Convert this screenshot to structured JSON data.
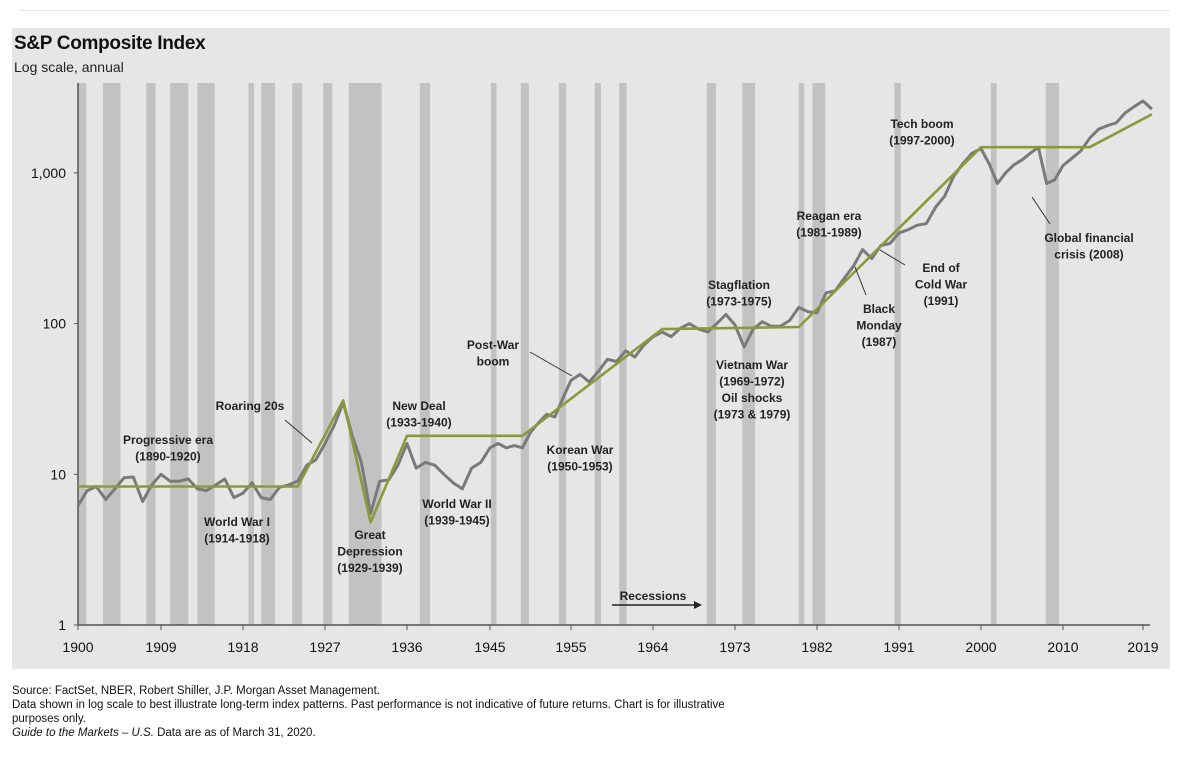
{
  "chart_data": {
    "type": "line",
    "title": "S&P Composite Index",
    "subtitle": "Log scale, annual",
    "xlabel": "",
    "ylabel": "",
    "yscale": "log",
    "ylim": [
      1,
      4000
    ],
    "xlim": [
      1900,
      2020
    ],
    "y_ticks": [
      {
        "value": 1,
        "label": "1"
      },
      {
        "value": 10,
        "label": "10"
      },
      {
        "value": 100,
        "label": "100"
      },
      {
        "value": 1000,
        "label": "1,000"
      }
    ],
    "x_ticks": [
      "1900",
      "1909",
      "1918",
      "1927",
      "1936",
      "1945",
      "1955",
      "1964",
      "1973",
      "1982",
      "1991",
      "2000",
      "2010",
      "2019"
    ],
    "series": [
      {
        "name": "S&P Composite Index",
        "color": "#7a7a7a",
        "x": [
          1900,
          1901,
          1902,
          1903,
          1904,
          1905,
          1906,
          1907,
          1908,
          1909,
          1910,
          1911,
          1912,
          1913,
          1914,
          1915,
          1916,
          1917,
          1918,
          1919,
          1920,
          1921,
          1922,
          1923,
          1924,
          1925,
          1926,
          1927,
          1928,
          1929,
          1930,
          1931,
          1932,
          1933,
          1934,
          1935,
          1936,
          1937,
          1938,
          1939,
          1940,
          1941,
          1942,
          1943,
          1944,
          1945,
          1946,
          1947,
          1948,
          1949,
          1950,
          1951,
          1952,
          1953,
          1954,
          1955,
          1956,
          1957,
          1958,
          1959,
          1960,
          1961,
          1962,
          1963,
          1964,
          1965,
          1966,
          1967,
          1968,
          1969,
          1970,
          1971,
          1972,
          1973,
          1974,
          1975,
          1976,
          1977,
          1978,
          1979,
          1980,
          1981,
          1982,
          1983,
          1984,
          1985,
          1986,
          1987,
          1988,
          1989,
          1990,
          1991,
          1992,
          1993,
          1994,
          1995,
          1996,
          1997,
          1998,
          1999,
          2000,
          2001,
          2002,
          2003,
          2004,
          2005,
          2006,
          2007,
          2008,
          2009,
          2010,
          2011,
          2012,
          2013,
          2014,
          2015,
          2016,
          2017,
          2018,
          2019,
          2020
        ],
        "values": [
          6.2,
          7.8,
          8.3,
          6.8,
          8.0,
          9.5,
          9.6,
          6.6,
          8.5,
          10.0,
          9.0,
          9.0,
          9.3,
          8.0,
          7.8,
          8.5,
          9.3,
          7.0,
          7.5,
          8.8,
          7.0,
          6.8,
          8.2,
          8.5,
          9.0,
          11.5,
          12.5,
          16.0,
          21.0,
          30.0,
          18.0,
          12.0,
          5.5,
          9.0,
          9.2,
          11.5,
          16.0,
          11.0,
          12.0,
          11.5,
          10.0,
          8.8,
          8.0,
          11.0,
          12.0,
          15.0,
          16.0,
          15.0,
          15.5,
          15.0,
          19.0,
          22.0,
          25.0,
          24.0,
          32.0,
          42.0,
          46.0,
          41.0,
          48.0,
          58.0,
          56.0,
          66.0,
          60.0,
          72.0,
          82.0,
          88.0,
          82.0,
          93.0,
          100.0,
          92.0,
          88.0,
          100.0,
          115.0,
          98.0,
          70.0,
          92.0,
          103.0,
          96.0,
          96.0,
          105.0,
          128.0,
          120.0,
          118.0,
          160.0,
          165.0,
          200.0,
          240.0,
          310.0,
          270.0,
          330.0,
          340.0,
          400.0,
          420.0,
          450.0,
          460.0,
          590.0,
          700.0,
          950.0,
          1150.0,
          1350.0,
          1450.0,
          1150.0,
          850.0,
          1000.0,
          1130.0,
          1220.0,
          1350.0,
          1480.0,
          850.0,
          900.0,
          1120.0,
          1250.0,
          1400.0,
          1700.0,
          1950.0,
          2060.0,
          2150.0,
          2500.0,
          2750.0,
          3000.0,
          2650.0
        ]
      },
      {
        "name": "Trend",
        "color": "#8a9a3a",
        "x": [
          1900,
          1924,
          1929,
          1932,
          1936,
          1949,
          1965,
          1980,
          2000,
          2013,
          2020
        ],
        "values": [
          8.3,
          8.3,
          31,
          4.8,
          18,
          18,
          92,
          95,
          1480,
          1480,
          2450
        ]
      }
    ],
    "recessions": [
      [
        1899.5,
        1900.9
      ],
      [
        1902.7,
        1904.6
      ],
      [
        1907.4,
        1908.4
      ],
      [
        1910.0,
        1912.0
      ],
      [
        1913.0,
        1914.9
      ],
      [
        1918.6,
        1919.2
      ],
      [
        1920.0,
        1921.5
      ],
      [
        1923.4,
        1924.5
      ],
      [
        1926.8,
        1927.8
      ],
      [
        1929.6,
        1933.2
      ],
      [
        1937.4,
        1938.5
      ],
      [
        1945.1,
        1945.8
      ],
      [
        1948.8,
        1949.8
      ],
      [
        1953.5,
        1954.4
      ],
      [
        1957.6,
        1958.3
      ],
      [
        1960.3,
        1961.1
      ],
      [
        1969.9,
        1970.9
      ],
      [
        1973.8,
        1975.2
      ],
      [
        1980.0,
        1980.6
      ],
      [
        1981.5,
        1982.9
      ],
      [
        1990.5,
        1991.2
      ],
      [
        2001.2,
        2001.9
      ],
      [
        2007.9,
        2009.5
      ]
    ],
    "recession_color": "#c2c2c2",
    "legend": {
      "label": "Recessions",
      "placement": "bottom-center"
    },
    "annotations": [
      {
        "id": "progressive",
        "lines": [
          "Progressive era",
          "(1890-1920)"
        ]
      },
      {
        "id": "roaring",
        "lines": [
          "Roaring 20s"
        ]
      },
      {
        "id": "ww1",
        "lines": [
          "World War I",
          "(1914-1918)"
        ]
      },
      {
        "id": "depression",
        "lines": [
          "Great",
          "Depression",
          "(1929-1939)"
        ]
      },
      {
        "id": "newdeal",
        "lines": [
          "New Deal",
          "(1933-1940)"
        ]
      },
      {
        "id": "ww2",
        "lines": [
          "World War II",
          "(1939-1945)"
        ]
      },
      {
        "id": "postwar",
        "lines": [
          "Post-War",
          "boom"
        ]
      },
      {
        "id": "korean",
        "lines": [
          "Korean War",
          "(1950-1953)"
        ]
      },
      {
        "id": "stagflation",
        "lines": [
          "Stagflation",
          "(1973-1975)"
        ]
      },
      {
        "id": "vietnam",
        "lines": [
          "Vietnam War",
          "(1969-1972)",
          "Oil shocks",
          "(1973 & 1979)"
        ]
      },
      {
        "id": "reagan",
        "lines": [
          "Reagan era",
          "(1981-1989)"
        ]
      },
      {
        "id": "blackmonday",
        "lines": [
          "Black",
          "Monday",
          "(1987)"
        ]
      },
      {
        "id": "coldwar",
        "lines": [
          "End of",
          "Cold War",
          "(1991)"
        ]
      },
      {
        "id": "techboom",
        "lines": [
          "Tech boom",
          "(1997-2000)"
        ]
      },
      {
        "id": "gfc",
        "lines": [
          "Global financial",
          "crisis (2008)"
        ]
      }
    ]
  },
  "footer": {
    "source": "Source: FactSet, NBER, Robert Shiller, J.P. Morgan Asset Management.",
    "note_1": "Data shown in log scale to best illustrate long-term index patterns. Past performance is not indicative of future returns. Chart is for illustrative",
    "note_2": "purposes only.",
    "guide_italic": "Guide to the Markets – U.S.",
    "date_note": " Data are as of March 31, 2020."
  }
}
